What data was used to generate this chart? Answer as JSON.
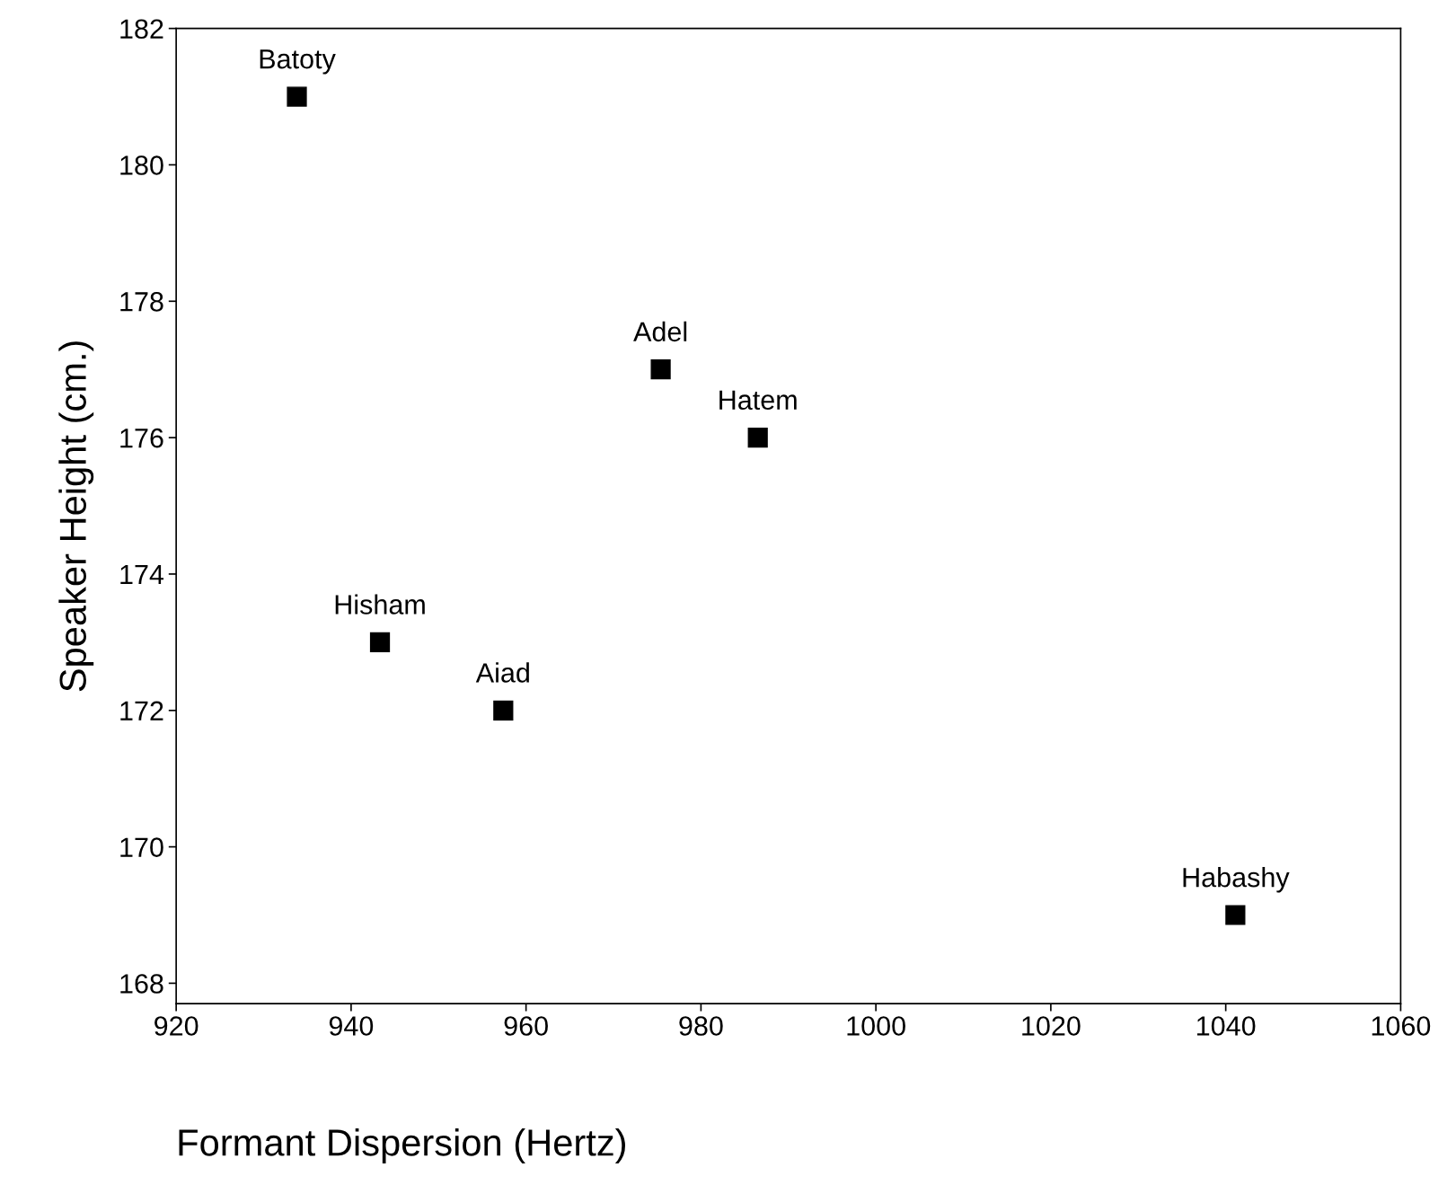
{
  "chart_data": {
    "type": "scatter",
    "xlabel": "Formant Dispersion (Hertz)",
    "ylabel": "Speaker Height (cm.)",
    "x": [
      933.8,
      975.4,
      986.5,
      943.3,
      957.4,
      1041.1
    ],
    "values": [
      181,
      177,
      176,
      173,
      172,
      169
    ],
    "color": "#000000",
    "marker": "square",
    "grid": false,
    "legend": false,
    "xlim": [
      920,
      1060
    ],
    "xticks": [
      920,
      940,
      960,
      980,
      1000,
      1020,
      1040,
      1060
    ],
    "ylim": [
      167.7,
      182
    ],
    "yticks": [
      168,
      170,
      172,
      174,
      176,
      178,
      180,
      182
    ],
    "annotations": [
      {
        "text": "Batoty",
        "x": 933.8,
        "y": 181
      },
      {
        "text": "Adel",
        "x": 975.4,
        "y": 177
      },
      {
        "text": "Hatem",
        "x": 986.5,
        "y": 176
      },
      {
        "text": "Hisham",
        "x": 943.3,
        "y": 173
      },
      {
        "text": "Aiad",
        "x": 957.4,
        "y": 172
      },
      {
        "text": "Habashy",
        "x": 1041.1,
        "y": 169
      }
    ]
  }
}
